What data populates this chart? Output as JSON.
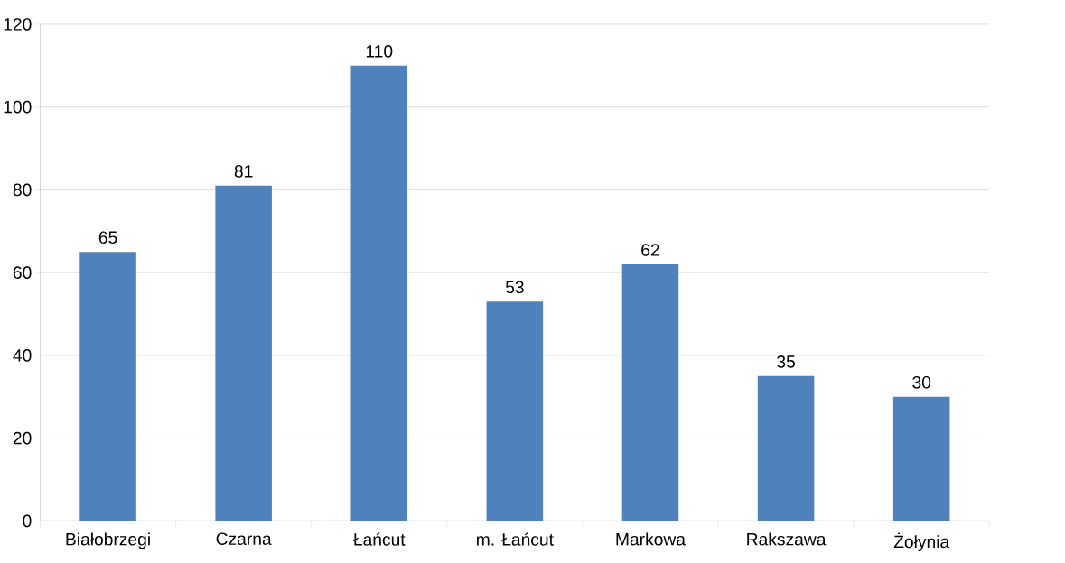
{
  "chart_data": {
    "type": "bar",
    "categories": [
      "Białobrzegi",
      "Czarna",
      "Łańcut",
      "m. Łańcut",
      "Markowa",
      "Rakszawa",
      "Żołynia"
    ],
    "values": [
      65,
      81,
      110,
      53,
      62,
      35,
      30
    ],
    "color": "#4f81bd",
    "ylim": [
      0,
      120
    ],
    "yticks": [
      0,
      20,
      40,
      60,
      80,
      100,
      120
    ],
    "grid": "y",
    "data_labels": true
  }
}
